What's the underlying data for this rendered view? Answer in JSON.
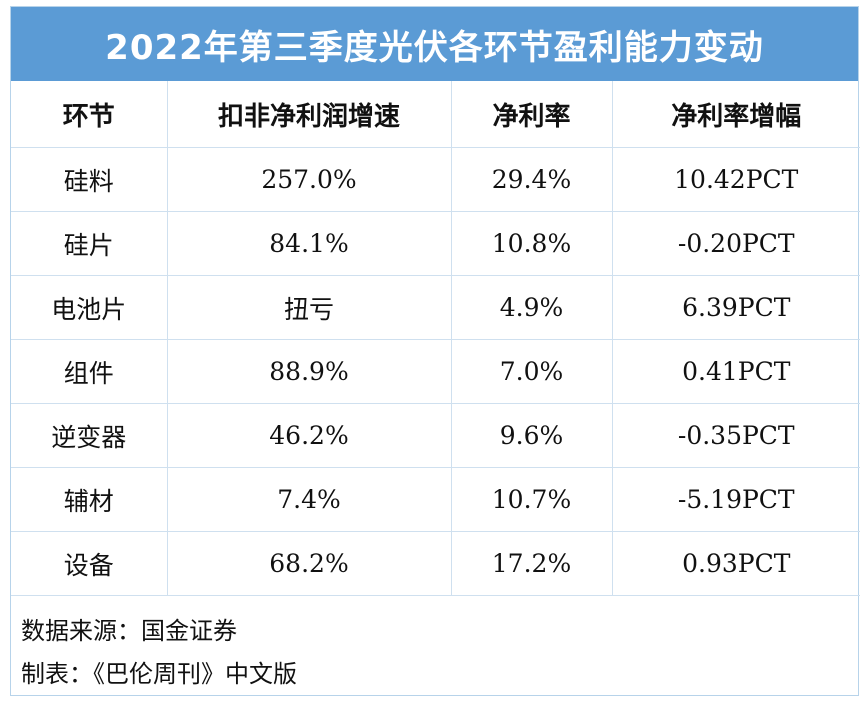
{
  "chart_data": {
    "type": "table",
    "title": "2022年第三季度光伏各环节盈利能力变动",
    "columns": [
      "环节",
      "扣非净利润增速",
      "净利率",
      "净利率增幅"
    ],
    "rows": [
      [
        "硅料",
        "257.0%",
        "29.4%",
        "10.42PCT"
      ],
      [
        "硅片",
        "84.1%",
        "10.8%",
        "-0.20PCT"
      ],
      [
        "电池片",
        "扭亏",
        "4.9%",
        "6.39PCT"
      ],
      [
        "组件",
        "88.9%",
        "7.0%",
        "0.41PCT"
      ],
      [
        "逆变器",
        "46.2%",
        "9.6%",
        "-0.35PCT"
      ],
      [
        "辅材",
        "7.4%",
        "10.7%",
        "-5.19PCT"
      ],
      [
        "设备",
        "68.2%",
        "17.2%",
        "0.93PCT"
      ]
    ]
  },
  "footer": {
    "source": "数据来源：国金证券",
    "maker": "制表：《巴伦周刊》中文版"
  },
  "colors": {
    "title_background": "#5b9bd5",
    "title_text": "#ffffff",
    "grid_lines": "#cfe0ef"
  }
}
